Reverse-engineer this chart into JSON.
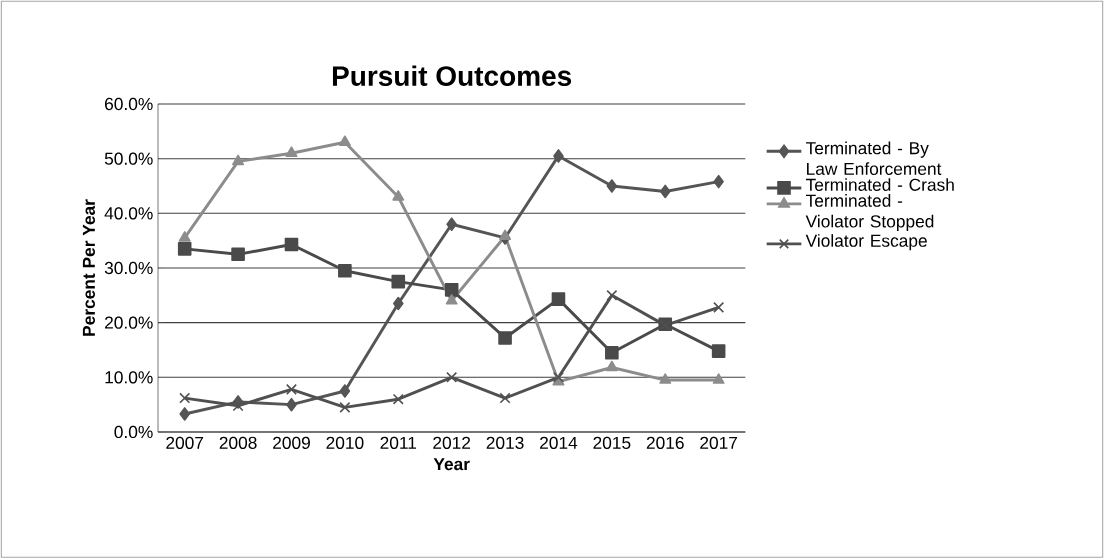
{
  "chart_data": {
    "type": "line",
    "title": "Pursuit Outcomes",
    "xlabel": "Year",
    "ylabel": "Percent Per Year",
    "categories": [
      "2007",
      "2008",
      "2009",
      "2010",
      "2011",
      "2012",
      "2013",
      "2014",
      "2015",
      "2016",
      "2017"
    ],
    "series": [
      {
        "name": "Terminated - By Law Enforcement",
        "color": "#555555",
        "marker": "diamond",
        "values": [
          3.3,
          5.5,
          5.0,
          7.5,
          23.5,
          38.0,
          35.5,
          50.5,
          45.0,
          44.0,
          45.8
        ]
      },
      {
        "name": "Terminated - Crash",
        "color": "#4a4a4a",
        "marker": "square",
        "values": [
          33.5,
          32.5,
          34.3,
          29.5,
          27.5,
          26.0,
          17.2,
          24.3,
          14.5,
          19.7,
          14.8
        ]
      },
      {
        "name": "Terminated - Violator Stopped",
        "color": "#8c8c8c",
        "marker": "triangle",
        "values": [
          35.5,
          49.5,
          51.0,
          53.0,
          43.0,
          24.0,
          35.8,
          9.2,
          11.8,
          9.5,
          9.5
        ]
      },
      {
        "name": "Violator Escape",
        "color": "#505050",
        "marker": "cross",
        "values": [
          6.2,
          4.8,
          7.8,
          4.5,
          6.0,
          10.0,
          6.2,
          10.0,
          25.0,
          19.5,
          22.8
        ]
      }
    ],
    "ylim": [
      0,
      60
    ],
    "yticks": [
      {
        "value": 0,
        "label": "0.0%"
      },
      {
        "value": 10,
        "label": "10.0%"
      },
      {
        "value": 20,
        "label": "20.0%"
      },
      {
        "value": 30,
        "label": "30.0%"
      },
      {
        "value": 40,
        "label": "40.0%"
      },
      {
        "value": 50,
        "label": "50.0%"
      },
      {
        "value": 60,
        "label": "60.0%"
      }
    ],
    "grid": "y",
    "legend": "right",
    "line_style": "solid"
  }
}
